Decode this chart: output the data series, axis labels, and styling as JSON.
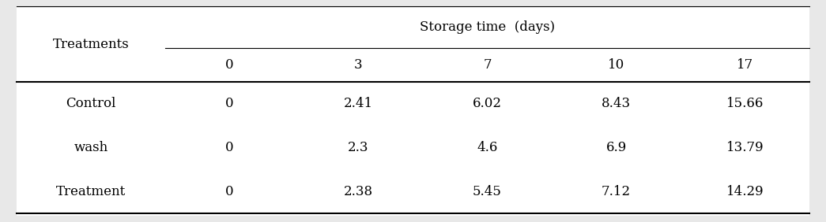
{
  "col_header_top": "Storage time  (days)",
  "col_header_sub": [
    "0",
    "3",
    "7",
    "10",
    "17"
  ],
  "row_header_label": "Treatments",
  "rows": [
    {
      "label": "Control",
      "values": [
        "0",
        "2.41",
        "6.02",
        "8.43",
        "15.66"
      ]
    },
    {
      "label": "wash",
      "values": [
        "0",
        "2.3",
        "4.6",
        "6.9",
        "13.79"
      ]
    },
    {
      "label": "Treatment",
      "values": [
        "0",
        "2.38",
        "5.45",
        "7.12",
        "14.29"
      ]
    }
  ],
  "background_color": "#e8e8e8",
  "table_bg": "#ffffff",
  "font_size": 12,
  "header_font_size": 12
}
